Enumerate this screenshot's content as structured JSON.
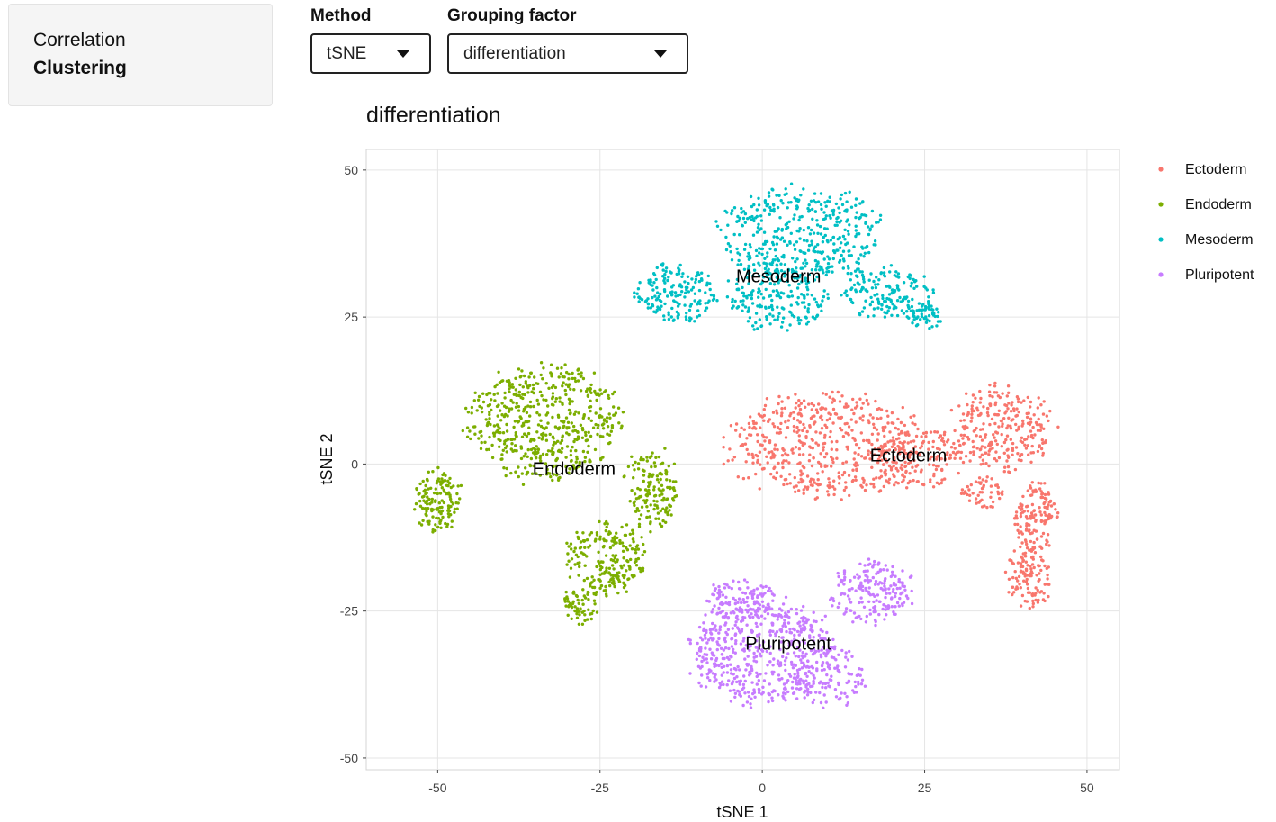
{
  "sidebar": {
    "items": [
      {
        "label": "Correlation",
        "active": false
      },
      {
        "label": "Clustering",
        "active": true
      }
    ]
  },
  "controls": {
    "method": {
      "label": "Method",
      "value": "tSNE"
    },
    "grouping": {
      "label": "Grouping factor",
      "value": "differentiation"
    }
  },
  "chart_data": {
    "type": "scatter",
    "title": "differentiation",
    "xlabel": "tSNE 1",
    "ylabel": "tSNE 2",
    "xlim": [
      -61,
      55
    ],
    "ylim": [
      -52,
      53.5
    ],
    "xticks": [
      -50,
      -25,
      0,
      25,
      50
    ],
    "yticks": [
      50,
      25,
      0,
      -25,
      -50
    ],
    "xtick_labels": [
      "-50",
      "-25",
      "0",
      "25",
      "50"
    ],
    "ytick_labels": [
      "50",
      "25",
      "0",
      "-25",
      "-50"
    ],
    "grid": true,
    "legend": {
      "position": "right"
    },
    "series": [
      {
        "name": "Ectoderm",
        "color": "#F8766D",
        "label_at": [
          22.5,
          1.5
        ],
        "regions": [
          {
            "cx": 10,
            "cy": 3,
            "rx": 17,
            "ry": 10,
            "n": 520
          },
          {
            "cx": 24,
            "cy": 1,
            "rx": 8,
            "ry": 6,
            "n": 140
          },
          {
            "cx": 37,
            "cy": 6,
            "rx": 9,
            "ry": 8,
            "n": 260
          },
          {
            "cx": 42,
            "cy": -9,
            "rx": 4,
            "ry": 6.5,
            "n": 130
          },
          {
            "cx": 41,
            "cy": -19,
            "rx": 4,
            "ry": 6,
            "n": 120
          },
          {
            "cx": 34,
            "cy": -5,
            "rx": 3.5,
            "ry": 3,
            "n": 50
          }
        ]
      },
      {
        "name": "Endoderm",
        "color": "#7CAE00",
        "label_at": [
          -29,
          -0.8
        ],
        "regions": [
          {
            "cx": -34,
            "cy": 7,
            "rx": 13,
            "ry": 11,
            "n": 520
          },
          {
            "cx": -50,
            "cy": -6,
            "rx": 4,
            "ry": 6,
            "n": 140
          },
          {
            "cx": -17,
            "cy": -4,
            "rx": 4.5,
            "ry": 8,
            "n": 150
          },
          {
            "cx": -24,
            "cy": -16,
            "rx": 7,
            "ry": 7,
            "n": 210
          },
          {
            "cx": -28,
            "cy": -24,
            "rx": 3,
            "ry": 3.5,
            "n": 60
          }
        ]
      },
      {
        "name": "Mesoderm",
        "color": "#00BFC4",
        "label_at": [
          2.5,
          32
        ],
        "regions": [
          {
            "cx": 6,
            "cy": 39,
            "rx": 14,
            "ry": 9,
            "n": 420
          },
          {
            "cx": -13,
            "cy": 29,
            "rx": 7,
            "ry": 6,
            "n": 170
          },
          {
            "cx": 2,
            "cy": 28,
            "rx": 9,
            "ry": 6,
            "n": 180
          },
          {
            "cx": 19,
            "cy": 29,
            "rx": 8,
            "ry": 5,
            "n": 150
          },
          {
            "cx": 25,
            "cy": 25.5,
            "rx": 3.5,
            "ry": 2.5,
            "n": 50
          }
        ]
      },
      {
        "name": "Pluripotent",
        "color": "#C77CFF",
        "label_at": [
          4,
          -30.5
        ],
        "regions": [
          {
            "cx": 0,
            "cy": -32,
            "rx": 13,
            "ry": 10,
            "n": 520
          },
          {
            "cx": -3,
            "cy": -23,
            "rx": 6,
            "ry": 4,
            "n": 120
          },
          {
            "cx": 17,
            "cy": -22,
            "rx": 7,
            "ry": 6,
            "n": 190
          },
          {
            "cx": 10,
            "cy": -36,
            "rx": 7,
            "ry": 6,
            "n": 120
          }
        ]
      }
    ]
  }
}
